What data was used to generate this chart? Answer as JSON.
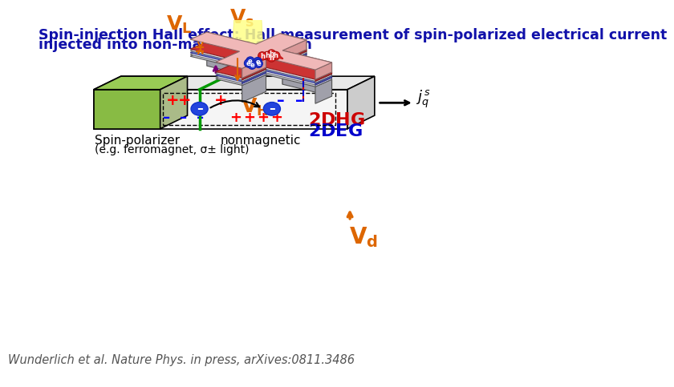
{
  "title_line1": "Spin-injection Hall effect: Hall measurement of spin-polarized electrical current",
  "title_line2": "injected into non-magnetic system",
  "title_color": "#1111aa",
  "title_fontsize": 12.5,
  "citation": "Wunderlich et al. Nature Phys. in press, arXives:0811.3486",
  "citation_color": "#555555",
  "citation_fontsize": 10.5,
  "bg_color": "#ffffff",
  "orange": "#dd6600",
  "red": "#cc0000",
  "blue_dark": "#0000cc",
  "green_slab": "#88bb44",
  "pink_cap": "#f0b8b8",
  "gray_sub": "#c8c8d0",
  "gray_side": "#a0a0aa",
  "blue_layer": "#5566cc",
  "blue_layer_light": "#aabbee",
  "red_layer": "#cc3333",
  "white_layer": "#e8e8f8"
}
